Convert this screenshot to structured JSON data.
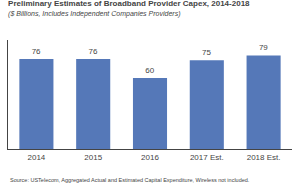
{
  "chart_data": {
    "type": "bar",
    "title": "Preliminary Estimates of Broadband Provider Capex, 2014-2018",
    "subtitle": "($ Billions, Includes Independent Companies Providers)",
    "annotations": [
      "Source: USTelecom, Aggregated Actual and Estimated Capital Expenditure, Wireless not included."
    ],
    "categories": [
      "2014",
      "2015",
      "2016",
      "2017 Est.",
      "2018 Est."
    ],
    "values": [
      76,
      76,
      60,
      75,
      79
    ],
    "color": "#5578B8",
    "ylim": [
      0,
      92
    ],
    "grid": false,
    "data_labels": true,
    "tick_labels": "x"
  }
}
